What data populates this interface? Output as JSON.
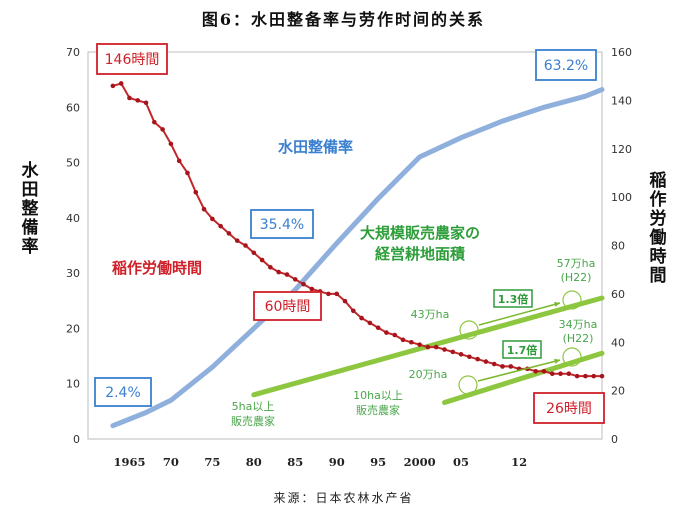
{
  "figure": {
    "title": "图6：水田整备率与劳作时间的关系",
    "source": "来源：日本农林水产省"
  },
  "chart_data": {
    "type": "line",
    "x": [
      1963,
      1965,
      1967,
      1968,
      1970,
      1971,
      1972,
      1973,
      1974,
      1975,
      1976,
      1977,
      1978,
      1979,
      1980,
      1981,
      1982,
      1983,
      1984,
      1985,
      1986,
      1987,
      1988,
      1989,
      1990,
      1991,
      1992,
      1993,
      1994,
      1995,
      1996,
      1997,
      1998,
      1999,
      2000,
      2001,
      2002,
      2003,
      2004,
      2005,
      2006,
      2007,
      2008,
      2009,
      2010,
      2011,
      2012,
      2013,
      2014,
      2015,
      2016,
      2017,
      2018,
      2019,
      2020,
      2021,
      2022
    ],
    "xticks": [
      "1965",
      "70",
      "75",
      "80",
      "85",
      "90",
      "95",
      "2000",
      "05",
      "12"
    ],
    "xtick_values": [
      1965,
      1970,
      1975,
      1980,
      1985,
      1990,
      1995,
      2000,
      2005,
      2012
    ],
    "xlim": [
      1960,
      2022
    ],
    "left_axis": {
      "label": "水田整備率",
      "ticks": [
        0,
        10,
        20,
        30,
        40,
        50,
        60,
        70
      ],
      "ylim": [
        0,
        70
      ]
    },
    "right_axis": {
      "label": "稲作労働時間",
      "ticks": [
        0,
        20,
        40,
        60,
        80,
        100,
        120,
        140,
        160
      ],
      "ylim": [
        0,
        160
      ]
    },
    "series": [
      {
        "name": "水田整備率",
        "axis": "left",
        "color": "#8fb0dd",
        "x": [
          1963,
          1967,
          1970,
          1975,
          1980,
          1985,
          1990,
          1995,
          2000,
          2005,
          2010,
          2015,
          2020,
          2022
        ],
        "values": [
          2.4,
          4.8,
          7.0,
          13.0,
          20.0,
          27.0,
          35.4,
          43.5,
          51.0,
          54.5,
          57.5,
          60.0,
          62.0,
          63.2
        ],
        "label_color": "#3a7fd0"
      },
      {
        "name": "稲作労働時間",
        "axis": "right",
        "color": "#c0282c",
        "x": [
          1963,
          1964,
          1965,
          1966,
          1967,
          1968,
          1969,
          1970,
          1971,
          1972,
          1973,
          1974,
          1975,
          1976,
          1977,
          1978,
          1979,
          1980,
          1981,
          1982,
          1983,
          1984,
          1985,
          1986,
          1987,
          1988,
          1989,
          1990,
          1991,
          1992,
          1993,
          1994,
          1995,
          1996,
          1997,
          1998,
          1999,
          2000,
          2001,
          2002,
          2003,
          2004,
          2005,
          2006,
          2007,
          2008,
          2009,
          2010,
          2011,
          2012,
          2013,
          2014,
          2015,
          2016,
          2017,
          2018,
          2019,
          2020,
          2021,
          2022
        ],
        "values": [
          146,
          147,
          141,
          140,
          139,
          131,
          128,
          122,
          115,
          110,
          102,
          95,
          91,
          88,
          85,
          82,
          80,
          77,
          74,
          71,
          69,
          68,
          66,
          64,
          62,
          61,
          60,
          60,
          57,
          53,
          50,
          48,
          46,
          44,
          43,
          41,
          40,
          39,
          38,
          38,
          37,
          36,
          35,
          34,
          33,
          32,
          31,
          30,
          30,
          29,
          29,
          28,
          28,
          27,
          27,
          27,
          26,
          26,
          26,
          26
        ],
        "label_color": "#d0202a"
      },
      {
        "name": "大規模販売農家の経営耕地面積 (10ha以上)",
        "axis": "left",
        "color": "#8dc63f",
        "x": [
          2003,
          2022
        ],
        "values": [
          6.6,
          15.5
        ]
      },
      {
        "name": "大規模販売農家の経営耕地面積 (5ha以上)",
        "axis": "left",
        "color": "#8dc63f",
        "x": [
          1980,
          2022
        ],
        "values": [
          8.0,
          25.5
        ]
      }
    ]
  },
  "annotations": {
    "rice_label": "稲作労働時間",
    "paddy_label": "水田整備率",
    "farm_label_line1": "大規模販売農家の",
    "farm_label_line2": "経営耕地面積",
    "box_146": "146時間",
    "box_60": "60時間",
    "box_26": "26時間",
    "box_24": "2.4%",
    "box_354": "35.4%",
    "box_632": "63.2%",
    "label_43": "43万ha",
    "label_57": "57万ha",
    "label_57_sub": "(H22)",
    "label_20": "20万ha",
    "label_34": "34万ha",
    "label_34_sub": "(H22)",
    "mult_13": "1.3倍",
    "mult_17": "1.7倍",
    "label_5ha_line1": "5ha以上",
    "label_5ha_line2": "販売農家",
    "label_10ha_line1": "10ha以上",
    "label_10ha_line2": "販売農家"
  }
}
